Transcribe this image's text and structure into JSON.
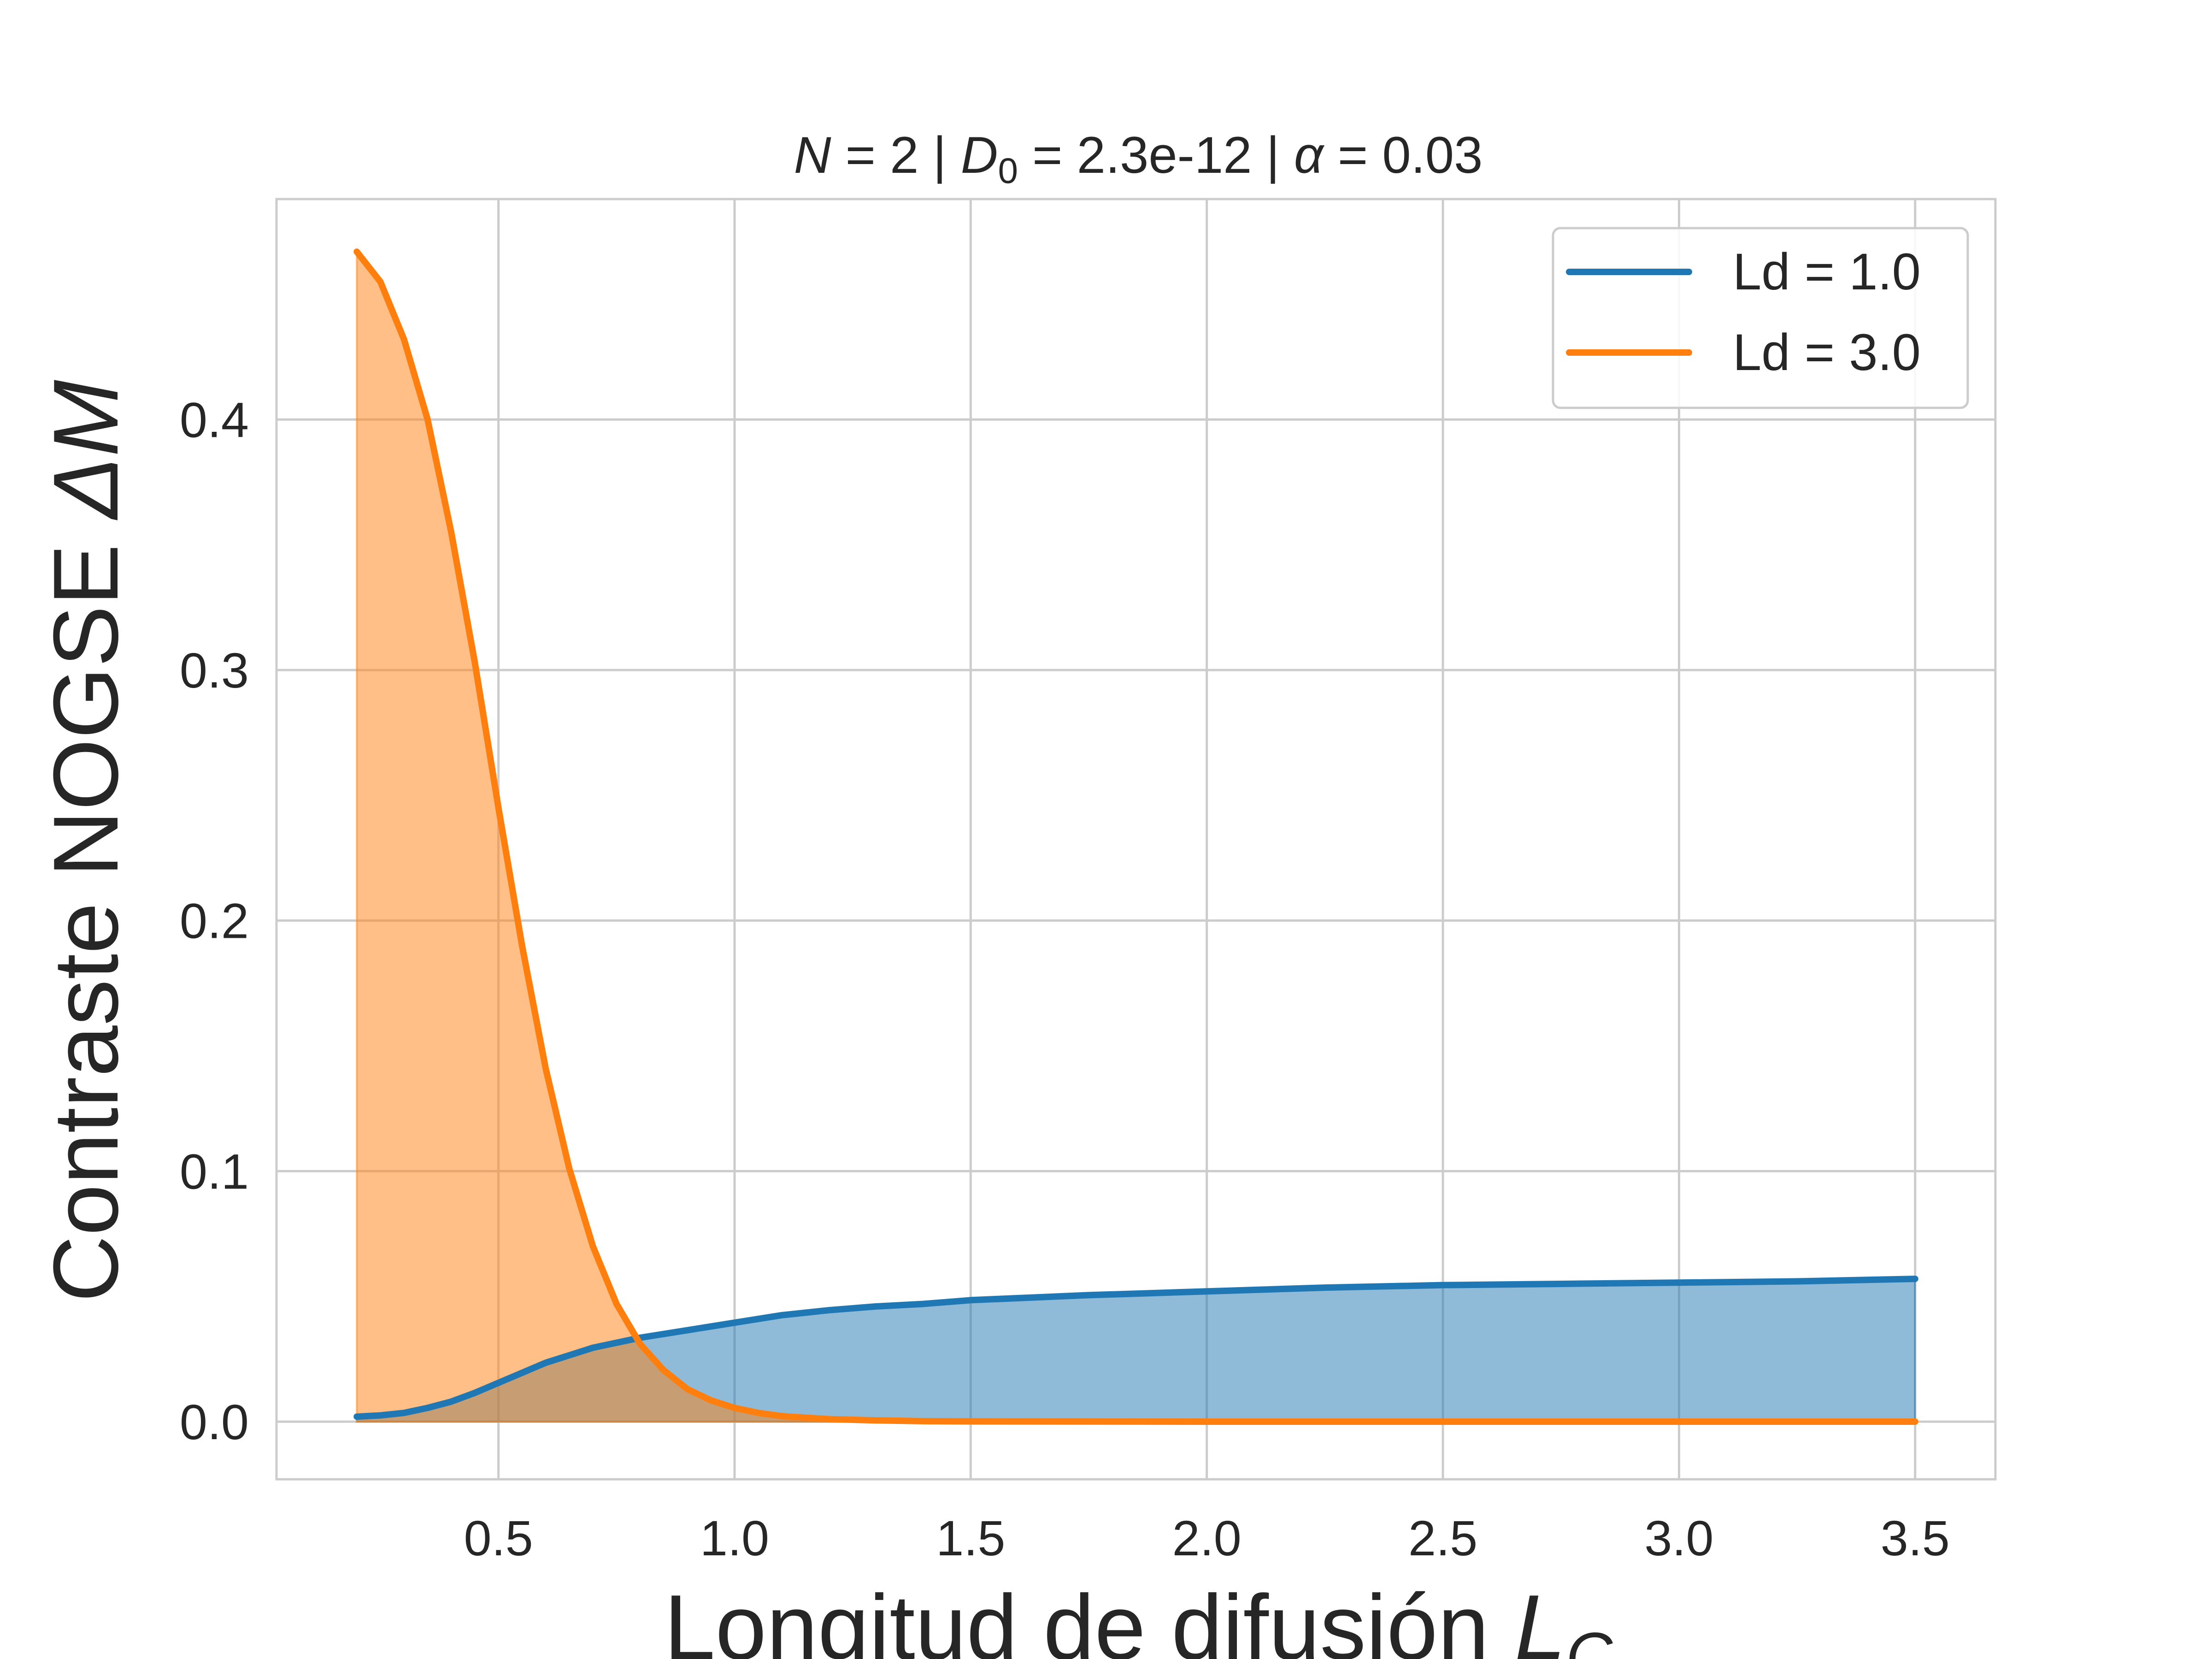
{
  "chart_data": {
    "type": "area",
    "title_parts": [
      "N",
      " = 2 | ",
      "D",
      "0",
      " = 2.3e-12 | ",
      "α",
      " = 0.03"
    ],
    "xlabel_parts": [
      "Longitud de difusión ",
      "L",
      "C"
    ],
    "ylabel_parts": [
      "Contraste NOGSE ",
      "ΔM"
    ],
    "xlim": [
      0.03,
      3.67
    ],
    "ylim": [
      -0.023,
      0.488
    ],
    "xticks": [
      0.5,
      1.0,
      1.5,
      2.0,
      2.5,
      3.0,
      3.5
    ],
    "xtick_labels": [
      "0.5",
      "1.0",
      "1.5",
      "2.0",
      "2.5",
      "3.0",
      "3.5"
    ],
    "yticks": [
      0.0,
      0.1,
      0.2,
      0.3,
      0.4
    ],
    "ytick_labels": [
      "0.0",
      "0.1",
      "0.2",
      "0.3",
      "0.4"
    ],
    "grid": true,
    "legend_position": "top-right",
    "series": [
      {
        "name": "Ld = 1.0",
        "color": "#1f77b4",
        "fill_color": "#1f77b4",
        "x": [
          0.2,
          0.25,
          0.3,
          0.35,
          0.4,
          0.45,
          0.5,
          0.55,
          0.6,
          0.7,
          0.8,
          0.9,
          1.0,
          1.1,
          1.2,
          1.3,
          1.4,
          1.5,
          1.75,
          2.0,
          2.25,
          2.5,
          2.75,
          3.0,
          3.25,
          3.5
        ],
        "y": [
          0.002,
          0.0025,
          0.0035,
          0.0055,
          0.008,
          0.0115,
          0.0155,
          0.0195,
          0.0235,
          0.0295,
          0.0335,
          0.0365,
          0.0395,
          0.0425,
          0.0445,
          0.046,
          0.047,
          0.0485,
          0.0505,
          0.052,
          0.0535,
          0.0545,
          0.055,
          0.0555,
          0.056,
          0.057
        ]
      },
      {
        "name": "Ld = 3.0",
        "color": "#ff7f0e",
        "fill_color": "#ff7f0e",
        "x": [
          0.2,
          0.25,
          0.3,
          0.35,
          0.4,
          0.45,
          0.5,
          0.55,
          0.6,
          0.65,
          0.7,
          0.75,
          0.8,
          0.85,
          0.9,
          0.95,
          1.0,
          1.05,
          1.1,
          1.2,
          1.3,
          1.4,
          1.5,
          2.0,
          2.5,
          3.0,
          3.5
        ],
        "y": [
          0.467,
          0.455,
          0.432,
          0.4,
          0.355,
          0.303,
          0.245,
          0.19,
          0.141,
          0.101,
          0.07,
          0.047,
          0.031,
          0.0205,
          0.013,
          0.0085,
          0.0055,
          0.0035,
          0.0022,
          0.001,
          0.0005,
          0.0002,
          0.0001,
          0.0,
          0.0,
          0.0,
          0.0
        ]
      }
    ]
  }
}
